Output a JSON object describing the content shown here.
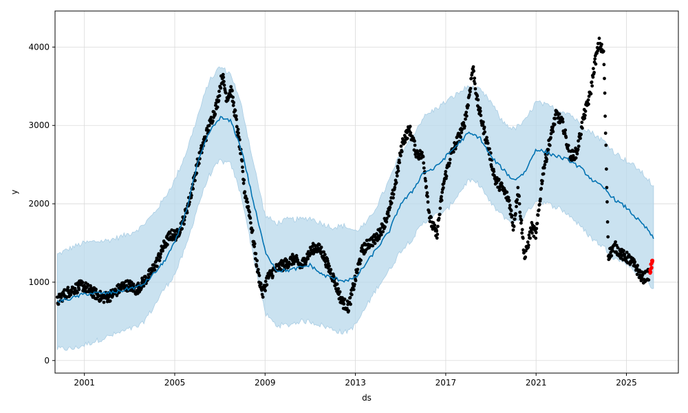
{
  "chart_data": {
    "type": "scatter",
    "title": "",
    "xlabel": "ds",
    "ylabel": "y",
    "x_ticks": [
      "2001",
      "2005",
      "2009",
      "2013",
      "2017",
      "2021",
      "2025"
    ],
    "y_ticks": [
      "0",
      "1000",
      "2000",
      "3000",
      "4000"
    ],
    "xlim": [
      1999.7,
      2027.3
    ],
    "ylim": [
      -160,
      4460
    ],
    "grid": true,
    "colors": {
      "observed": "#000000",
      "forecast_line": "#0072B2",
      "uncertainty_band": "#B8D8EB",
      "recent_points": "#FF0000"
    },
    "forecast": {
      "x": [
        1999.8,
        2000.5,
        2001.0,
        2001.5,
        2002.0,
        2002.5,
        2003.0,
        2003.5,
        2004.0,
        2004.5,
        2005.0,
        2005.5,
        2006.0,
        2006.5,
        2007.0,
        2007.5,
        2008.0,
        2008.5,
        2009.0,
        2009.5,
        2010.0,
        2010.5,
        2011.0,
        2011.5,
        2012.0,
        2012.5,
        2013.0,
        2013.5,
        2014.0,
        2014.5,
        2015.0,
        2015.5,
        2016.0,
        2016.5,
        2017.0,
        2017.5,
        2018.0,
        2018.5,
        2019.0,
        2019.5,
        2020.0,
        2020.5,
        2021.0,
        2021.5,
        2022.0,
        2022.5,
        2023.0,
        2023.5,
        2024.0,
        2024.5,
        2025.0,
        2025.5,
        2026.0,
        2026.2
      ],
      "yhat": [
        750,
        800,
        850,
        860,
        860,
        880,
        920,
        950,
        1080,
        1250,
        1500,
        1900,
        2500,
        2900,
        3100,
        3050,
        2650,
        2000,
        1400,
        1150,
        1150,
        1180,
        1220,
        1100,
        1050,
        1020,
        1050,
        1250,
        1450,
        1650,
        2000,
        2150,
        2400,
        2450,
        2600,
        2750,
        2900,
        2850,
        2600,
        2450,
        2300,
        2400,
        2700,
        2650,
        2600,
        2550,
        2450,
        2300,
        2200,
        2050,
        1950,
        1800,
        1650,
        1550
      ],
      "yhat_upper": [
        1350,
        1450,
        1500,
        1520,
        1530,
        1570,
        1620,
        1700,
        1850,
        2050,
        2300,
        2650,
        3100,
        3550,
        3750,
        3650,
        3200,
        2500,
        1850,
        1750,
        1800,
        1800,
        1820,
        1750,
        1700,
        1720,
        1650,
        1750,
        2000,
        2300,
        2650,
        2850,
        3100,
        3200,
        3300,
        3400,
        3500,
        3450,
        3300,
        3050,
        2950,
        3050,
        3300,
        3250,
        3200,
        3150,
        3000,
        2900,
        2800,
        2650,
        2550,
        2450,
        2300,
        2200
      ],
      "yhat_lower": [
        150,
        150,
        200,
        250,
        300,
        350,
        400,
        450,
        650,
        900,
        1100,
        1450,
        1950,
        2350,
        2550,
        2500,
        2050,
        1300,
        600,
        450,
        450,
        500,
        500,
        450,
        400,
        350,
        450,
        700,
        950,
        1150,
        1400,
        1550,
        1750,
        1850,
        1900,
        2100,
        2300,
        2250,
        2000,
        1850,
        1750,
        1850,
        2050,
        2000,
        1950,
        1850,
        1700,
        1550,
        1450,
        1300,
        1250,
        1100,
        1000,
        900
      ]
    },
    "observed": {
      "x": [
        1999.8,
        2000.0,
        2000.3,
        2000.6,
        2000.9,
        2001.2,
        2001.5,
        2001.8,
        2002.1,
        2002.4,
        2002.7,
        2003.0,
        2003.3,
        2003.6,
        2003.9,
        2004.2,
        2004.5,
        2004.8,
        2005.1,
        2005.4,
        2005.7,
        2006.0,
        2006.3,
        2006.6,
        2006.9,
        2007.1,
        2007.3,
        2007.5,
        2007.7,
        2007.9,
        2008.1,
        2008.3,
        2008.5,
        2008.7,
        2008.9,
        2009.1,
        2009.4,
        2009.7,
        2010.0,
        2010.3,
        2010.6,
        2010.9,
        2011.2,
        2011.5,
        2011.8,
        2012.1,
        2012.4,
        2012.7,
        2013.0,
        2013.3,
        2013.6,
        2013.9,
        2014.2,
        2014.5,
        2014.8,
        2015.1,
        2015.4,
        2015.7,
        2016.0,
        2016.3,
        2016.6,
        2016.9,
        2017.2,
        2017.5,
        2017.8,
        2018.0,
        2018.2,
        2018.4,
        2018.6,
        2018.9,
        2019.2,
        2019.5,
        2019.8,
        2020.0,
        2020.2,
        2020.5,
        2020.8,
        2021.0,
        2021.3,
        2021.6,
        2021.9,
        2022.2,
        2022.5,
        2022.8,
        2023.1,
        2023.4,
        2023.6,
        2023.8,
        2024.0,
        2024.2,
        2024.5,
        2024.8,
        2025.1,
        2025.4,
        2025.7,
        2026.0
      ],
      "y": [
        750,
        820,
        880,
        920,
        960,
        900,
        850,
        800,
        820,
        880,
        950,
        960,
        900,
        1000,
        1100,
        1250,
        1450,
        1600,
        1600,
        1800,
        2100,
        2500,
        2800,
        3050,
        3300,
        3650,
        3350,
        3450,
        3100,
        2700,
        2150,
        1900,
        1500,
        1100,
        850,
        1050,
        1150,
        1200,
        1250,
        1300,
        1200,
        1350,
        1450,
        1400,
        1200,
        1000,
        750,
        680,
        1050,
        1400,
        1500,
        1550,
        1700,
        1900,
        2300,
        2800,
        2950,
        2650,
        2600,
        1800,
        1600,
        2250,
        2600,
        2800,
        3000,
        3300,
        3750,
        3300,
        3050,
        2700,
        2300,
        2200,
        2050,
        1700,
        2200,
        1300,
        1700,
        1600,
        2400,
        2800,
        3150,
        3000,
        2600,
        2650,
        3100,
        3400,
        3800,
        4050,
        3900,
        1350,
        1450,
        1350,
        1300,
        1200,
        1050,
        1100
      ]
    },
    "recent": {
      "x": [
        2026.05,
        2026.1,
        2026.15
      ],
      "y": [
        1150,
        1200,
        1250
      ]
    }
  }
}
